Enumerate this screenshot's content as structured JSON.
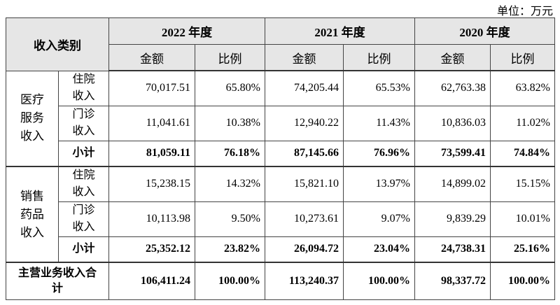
{
  "unit": "单位：万元",
  "table": {
    "header": {
      "category": "收入类别",
      "years": [
        "2022 年度",
        "2021 年度",
        "2020 年度"
      ],
      "sub": [
        "金额",
        "比例"
      ]
    },
    "groups": [
      {
        "name": "医疗服务收入",
        "rows": [
          {
            "item": "住院收入",
            "cells": [
              "70,017.51",
              "65.80%",
              "74,205.44",
              "65.53%",
              "62,763.38",
              "63.82%"
            ]
          },
          {
            "item": "门诊收入",
            "cells": [
              "11,041.61",
              "10.38%",
              "12,940.22",
              "11.43%",
              "10,836.03",
              "11.02%"
            ]
          },
          {
            "item": "小计",
            "cells": [
              "81,059.11",
              "76.18%",
              "87,145.66",
              "76.96%",
              "73,599.41",
              "74.84%"
            ]
          }
        ]
      },
      {
        "name": "销售药品收入",
        "rows": [
          {
            "item": "住院收入",
            "cells": [
              "15,238.15",
              "14.32%",
              "15,821.10",
              "13.97%",
              "14,899.02",
              "15.15%"
            ]
          },
          {
            "item": "门诊收入",
            "cells": [
              "10,113.98",
              "9.50%",
              "10,273.61",
              "9.07%",
              "9,839.29",
              "10.01%"
            ]
          },
          {
            "item": "小计",
            "cells": [
              "25,352.12",
              "23.82%",
              "26,094.72",
              "23.04%",
              "24,738.31",
              "25.16%"
            ]
          }
        ]
      }
    ],
    "total": {
      "label": "主营业务收入合计",
      "cells": [
        "106,411.24",
        "100.00%",
        "113,240.37",
        "100.00%",
        "98,337.72",
        "100.00%"
      ]
    }
  }
}
